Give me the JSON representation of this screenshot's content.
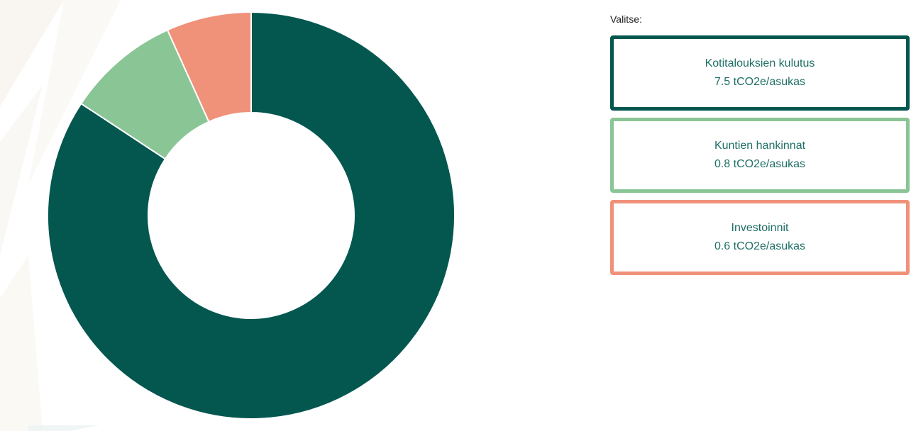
{
  "picker": {
    "label": "Valitse:",
    "options": [
      {
        "name": "Kotitalouksien kulutus",
        "value_text": "7.5 tCO2e/asukas",
        "color": "#03574f",
        "selected": true
      },
      {
        "name": "Kuntien hankinnat",
        "value_text": "0.8 tCO2e/asukas",
        "color": "#8ac596",
        "selected": false
      },
      {
        "name": "Investoinnit",
        "value_text": "0.6 tCO2e/asukas",
        "color": "#f0917a",
        "selected": false
      }
    ]
  },
  "chart_data": {
    "type": "pie",
    "donut": true,
    "title": "",
    "slices": [
      {
        "label": "Kotitalouksien kulutus",
        "value": 7.5,
        "unit": "tCO2e/asukas",
        "color": "#03574f"
      },
      {
        "label": "Kuntien hankinnat",
        "value": 0.8,
        "unit": "tCO2e/asukas",
        "color": "#8ac596"
      },
      {
        "label": "Investoinnit",
        "value": 0.6,
        "unit": "tCO2e/asukas",
        "color": "#f0917a"
      }
    ],
    "legend": "right"
  }
}
